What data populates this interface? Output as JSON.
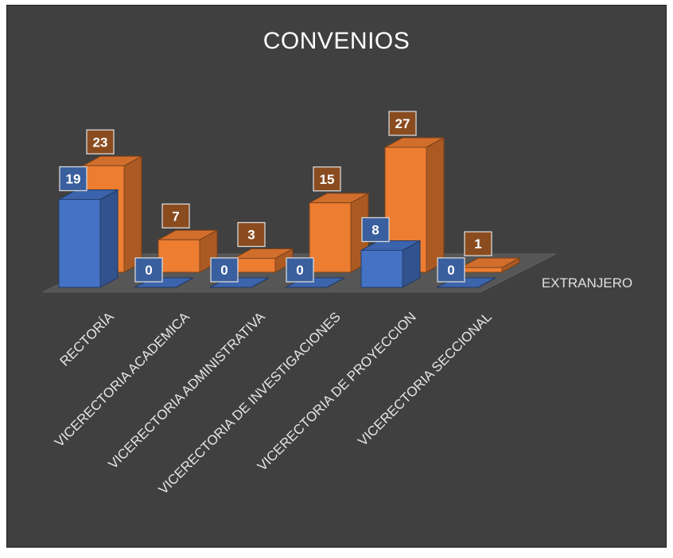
{
  "chart_data": {
    "type": "bar",
    "title": "CONVENIOS",
    "categories": [
      "RECTORÍA",
      "VICERECTORIA ACADEMICA",
      "VICERECTORIA ADMINISTRATIVA",
      "VICERECTORIA DE INVESTIGACIONES",
      "VICERECTORIA DE PROYECCION",
      "VICERECTORIA SECCIONAL"
    ],
    "series": [
      {
        "values": [
          19,
          0,
          0,
          0,
          8,
          0
        ],
        "color": "#4472C4"
      },
      {
        "name": "EXTRANJERO",
        "values": [
          23,
          7,
          3,
          15,
          27,
          1
        ],
        "color": "#ED7D31"
      }
    ],
    "ylim": [
      0,
      27
    ],
    "grid": false,
    "legend": "none",
    "data_labels": true
  }
}
